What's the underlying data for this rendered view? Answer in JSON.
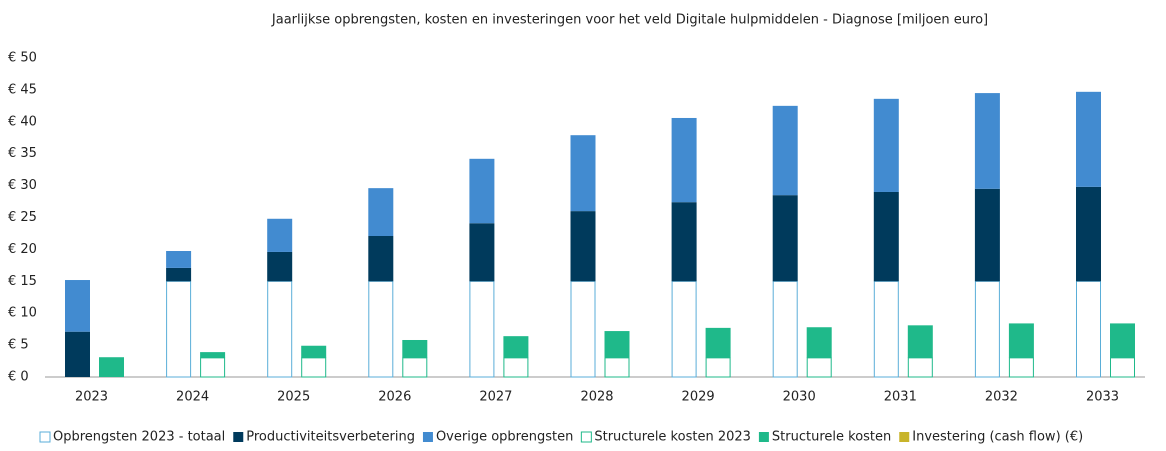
{
  "chart_data": {
    "type": "stacked_bar",
    "title": "Jaarlijkse opbrengsten, kosten en investeringen voor het veld Digitale hulpmiddelen - Diagnose [miljoen euro]",
    "categories": [
      "2023",
      "2024",
      "2025",
      "2026",
      "2027",
      "2028",
      "2029",
      "2030",
      "2031",
      "2032",
      "2033"
    ],
    "series": [
      {
        "name": "Opbrengsten 2023 - totaal",
        "color": "#5aaed8",
        "stack": "opbrengsten",
        "outline": true,
        "values": [
          0,
          15,
          15,
          15,
          15,
          15,
          15,
          15,
          15,
          15,
          15
        ]
      },
      {
        "name": "Productiviteitsverbetering",
        "color": "#003a5c",
        "stack": "opbrengsten",
        "values": [
          7.1,
          2.1,
          4.6,
          7.1,
          9.1,
          11.0,
          12.4,
          13.5,
          14.0,
          14.5,
          14.8
        ]
      },
      {
        "name": "Overige opbrengsten",
        "color": "#428bd0",
        "stack": "opbrengsten",
        "values": [
          8.1,
          2.65,
          5.2,
          7.5,
          10.1,
          11.9,
          13.2,
          14.0,
          14.6,
          15.0,
          14.9
        ]
      },
      {
        "name": "Structurele kosten 2023",
        "color": "#1fb98a",
        "stack": "kosten",
        "outline": true,
        "values": [
          0,
          3,
          3,
          3,
          3,
          3,
          3,
          3,
          3,
          3,
          3
        ]
      },
      {
        "name": "Structurele kosten",
        "color": "#1fb98a",
        "stack": "kosten",
        "values": [
          3.1,
          0.9,
          1.9,
          2.8,
          3.4,
          4.2,
          4.7,
          4.8,
          5.1,
          5.4,
          5.4
        ]
      },
      {
        "name": "Investering (cash flow) (€)",
        "color": "#c8b42a",
        "stack": "kosten",
        "values": [
          0,
          0,
          0,
          0,
          0,
          0,
          0,
          0,
          0,
          0,
          0
        ]
      }
    ],
    "ylim": [
      0,
      50
    ],
    "yticks": [
      {
        "value": 0,
        "label": "€ 0"
      },
      {
        "value": 5,
        "label": "€ 5"
      },
      {
        "value": 10,
        "label": "€ 10"
      },
      {
        "value": 15,
        "label": "€ 15"
      },
      {
        "value": 20,
        "label": "€ 20"
      },
      {
        "value": 25,
        "label": "€ 25"
      },
      {
        "value": 30,
        "label": "€ 30"
      },
      {
        "value": 35,
        "label": "€ 35"
      },
      {
        "value": 40,
        "label": "€ 40"
      },
      {
        "value": 45,
        "label": "€ 45"
      },
      {
        "value": 50,
        "label": "€ 50"
      }
    ],
    "legend": "bottom"
  }
}
